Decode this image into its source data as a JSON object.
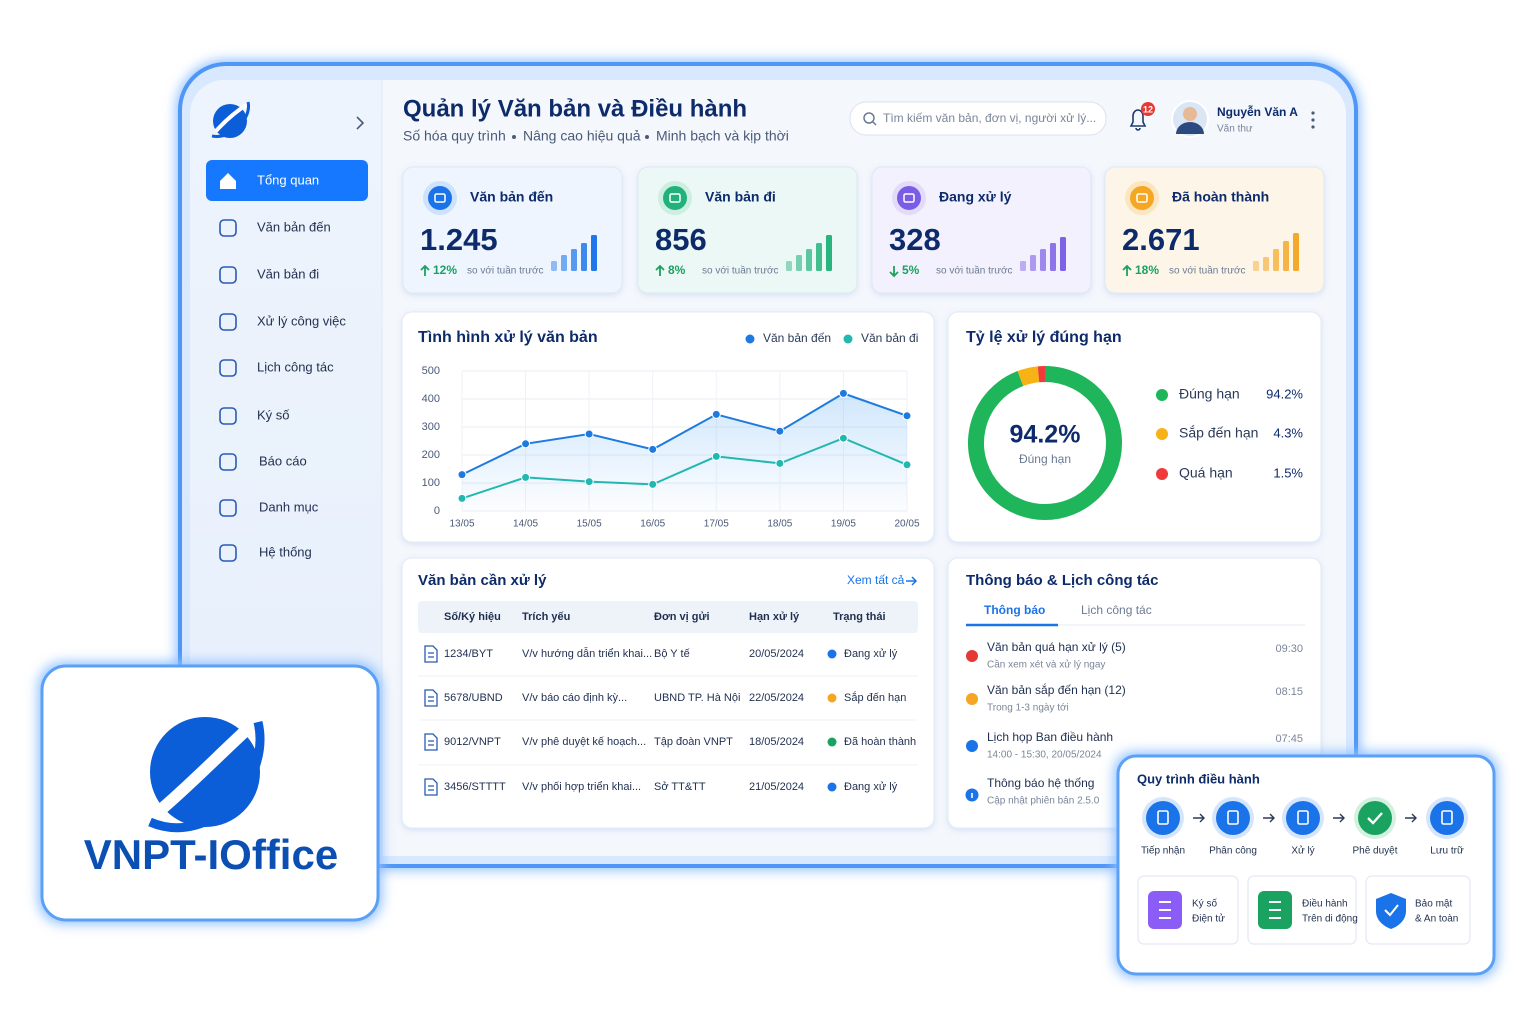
{
  "header": {
    "title": "Quản lý  Văn bản và Điều hành",
    "subtitle_items": [
      "Số hóa quy trình",
      "Nâng cao hiệu quả",
      "Minh bạch và kịp thời"
    ],
    "search_placeholder": "Tìm kiếm văn bản, đơn vị, người xử lý...",
    "notification_count": "12",
    "user_name": "Nguyễn Văn A",
    "user_role": "Văn thư"
  },
  "sidebar": {
    "items": [
      "Tổng quan",
      "Văn bản đến",
      "Văn bản đi",
      "Xử lý công việc",
      "Lịch công tác",
      "Ký số",
      "Báo cáo",
      "Danh mục",
      "Hệ thống"
    ]
  },
  "kpis": [
    {
      "label": "Văn bản đến",
      "value": "1.245",
      "change": "12%",
      "note": "so với tuần trước"
    },
    {
      "label": "Văn bản đi",
      "value": "856",
      "change": "8%",
      "note": "so với tuần trước"
    },
    {
      "label": "Đang xử lý",
      "value": "328",
      "change": "5%",
      "note": "so với tuần trước"
    },
    {
      "label": "Đã hoàn thành",
      "value": "2.671",
      "change": "18%",
      "note": "so với tuần trước"
    }
  ],
  "chart_data": [
    {
      "type": "line",
      "title": "Tình hình xử lý văn bản",
      "categories": [
        "13/05",
        "14/05",
        "15/05",
        "16/05",
        "17/05",
        "18/05",
        "19/05",
        "20/05"
      ],
      "series": [
        {
          "name": "Văn bản đến",
          "color": "#1f7ae0",
          "values": [
            130,
            240,
            275,
            220,
            345,
            285,
            420,
            340
          ]
        },
        {
          "name": "Văn bản đi",
          "color": "#22b8b0",
          "values": [
            45,
            120,
            105,
            95,
            195,
            170,
            260,
            165
          ]
        }
      ],
      "ylim": [
        0,
        500
      ],
      "yticks": [
        0,
        100,
        200,
        300,
        400,
        500
      ],
      "grid": true,
      "legend": "top-right"
    },
    {
      "type": "pie",
      "title": "Tỷ lệ xử lý đúng hạn",
      "categories": [
        "Đúng hạn",
        "Sắp đến hạn",
        "Quá hạn"
      ],
      "values": [
        94.2,
        4.3,
        1.5
      ],
      "value_labels": [
        "94.2%",
        "4.3%",
        "1.5%"
      ],
      "colors": [
        "#1fb55a",
        "#f7b316",
        "#ef3b3b"
      ],
      "center_value": "94.2%",
      "center_label": "Đúng hạn",
      "legend": "right"
    }
  ],
  "table": {
    "title": "Văn bản cần xử lý",
    "link": "Xem tất cả",
    "columns": [
      "Số/Ký hiệu",
      "Trích yếu",
      "Đơn vị gửi",
      "Hạn xử lý",
      "Trạng thái"
    ],
    "rows": [
      [
        "1234/BYT",
        "V/v hướng dẫn triển khai...",
        "Bộ Y tế",
        "20/05/2024",
        "Đang xử lý"
      ],
      [
        "5678/UBND",
        "V/v báo cáo định kỳ...",
        "UBND TP. Hà Nội",
        "22/05/2024",
        "Sắp đến hạn"
      ],
      [
        "9012/VNPT",
        "V/v phê duyệt kế hoạch...",
        "Tập đoàn VNPT",
        "18/05/2024",
        "Đã hoàn thành"
      ],
      [
        "3456/STTTT",
        "V/v phối hợp triển khai...",
        "Sở TT&TT",
        "21/05/2024",
        "Đang xử lý"
      ]
    ]
  },
  "notices": {
    "title": "Thông báo & Lịch công tác",
    "tabs": [
      "Thông báo",
      "Lịch công tác"
    ],
    "items": [
      {
        "title": "Văn bản quá hạn xử lý (5)",
        "subtitle": "Cần xem xét và xử lý ngay",
        "time": "09:30"
      },
      {
        "title": "Văn bản sắp đến hạn (12)",
        "subtitle": "Trong 1-3 ngày tới",
        "time": "08:15"
      },
      {
        "title": "Lịch họp Ban điều hành",
        "subtitle": "14:00 - 15:30, 20/05/2024",
        "time": "07:45"
      },
      {
        "title": "Thông báo hệ thống",
        "subtitle": "Cập nhật phiên bản 2.5.0"
      }
    ]
  },
  "process": {
    "title": "Quy trình điều hành",
    "steps": [
      "Tiếp nhận",
      "Phân công",
      "Xử lý",
      "Phê duyệt",
      "Lưu trữ"
    ],
    "features": [
      [
        "Ký số",
        "Điện tử"
      ],
      [
        "Điều hành",
        "Trên di động"
      ],
      [
        "Bảo mật",
        "& An toàn"
      ]
    ]
  },
  "brand": "VNPT-IOffice"
}
